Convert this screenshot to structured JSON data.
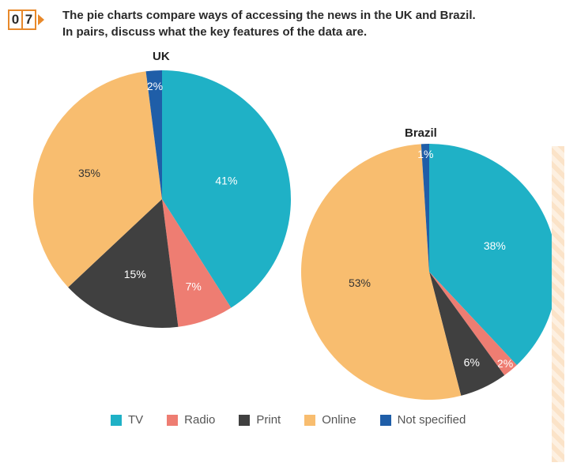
{
  "exercise": {
    "number_digits": [
      "0",
      "7"
    ]
  },
  "instructions": {
    "line1": "The pie charts compare ways of accessing the news in the UK and Brazil.",
    "line2": "In pairs, discuss what the key features of the data are."
  },
  "chart_data": [
    {
      "type": "pie",
      "title": "UK",
      "slices": [
        {
          "label": "TV",
          "value": 41,
          "text": "41%",
          "color": "#1fb1c6"
        },
        {
          "label": "Radio",
          "value": 7,
          "text": "7%",
          "color": "#ee7d72"
        },
        {
          "label": "Print",
          "value": 15,
          "text": "15%",
          "color": "#404040"
        },
        {
          "label": "Online",
          "value": 35,
          "text": "35%",
          "color": "#f8bd6f"
        },
        {
          "label": "Not specified",
          "value": 2,
          "text": "2%",
          "color": "#1f5ea8"
        }
      ]
    },
    {
      "type": "pie",
      "title": "Brazil",
      "slices": [
        {
          "label": "TV",
          "value": 38,
          "text": "38%",
          "color": "#1fb1c6"
        },
        {
          "label": "Radio",
          "value": 2,
          "text": "2%",
          "color": "#ee7d72"
        },
        {
          "label": "Print",
          "value": 6,
          "text": "6%",
          "color": "#404040"
        },
        {
          "label": "Online",
          "value": 53,
          "text": "53%",
          "color": "#f8bd6f"
        },
        {
          "label": "Not specified",
          "value": 1,
          "text": "1%",
          "color": "#1f5ea8"
        }
      ]
    }
  ],
  "legend": [
    {
      "label": "TV",
      "color": "#1fb1c6"
    },
    {
      "label": "Radio",
      "color": "#ee7d72"
    },
    {
      "label": "Print",
      "color": "#404040"
    },
    {
      "label": "Online",
      "color": "#f8bd6f"
    },
    {
      "label": "Not specified",
      "color": "#1f5ea8"
    }
  ]
}
